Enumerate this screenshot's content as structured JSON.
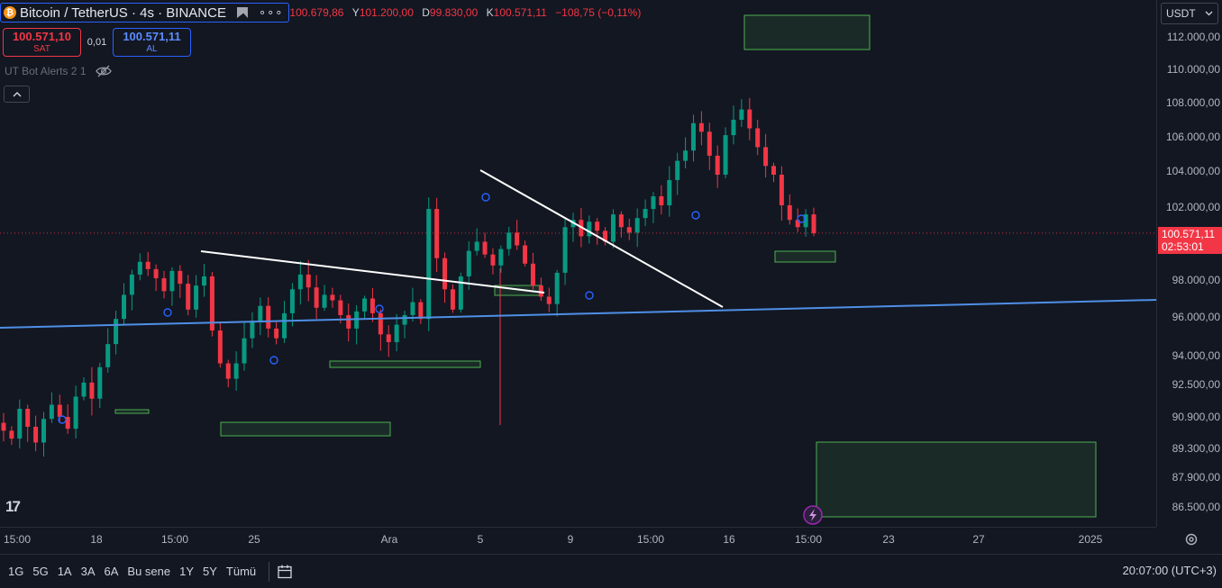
{
  "legend": {
    "symbol": "Bitcoin / TetherUS · 4s · BINANCE",
    "coin_glyph": "₿",
    "more_glyph": "∘∘∘",
    "ohlc_open_value": "100.679,86",
    "ohlc_high_key": "Y",
    "ohlc_high_value": "101.200,00",
    "ohlc_low_key": "D",
    "ohlc_low_value": "99.830,00",
    "ohlc_close_key": "K",
    "ohlc_close_value": "100.571,11",
    "ohlc_change": "−108,75 (−0,11%)"
  },
  "trade": {
    "sell_price": "100.571,10",
    "sell_label": "SAT",
    "spread": "0,01",
    "buy_price": "100.571,11",
    "buy_label": "AL"
  },
  "indicator": {
    "name": "UT Bot Alerts 2 1"
  },
  "logo": {
    "text": "17"
  },
  "price_axis": {
    "currency": "USDT",
    "ticks": [
      "112.000,00",
      "110.000,00",
      "108.000,00",
      "106.000,00",
      "104.000,00",
      "102.000,00",
      "98.000,00",
      "96.000,00",
      "94.000,00",
      "92.500,00",
      "90.900,00",
      "89.300,00",
      "87.900,00",
      "86.500,00"
    ],
    "last_price": "100.571,11",
    "countdown": "02:53:01"
  },
  "time_axis": {
    "labels": [
      "15:00",
      "18",
      "15:00",
      "25",
      "Ara",
      "5",
      "9",
      "15:00",
      "16",
      "15:00",
      "23",
      "27",
      "2025"
    ]
  },
  "bottom_bar": {
    "ranges": [
      "1G",
      "5G",
      "1A",
      "3A",
      "6A",
      "Bu sene",
      "1Y",
      "5Y",
      "Tümü"
    ],
    "clock": "20:07:00 (UTC+3)"
  },
  "colors": {
    "background": "#131722",
    "bull": "#089981",
    "bear": "#f23645",
    "trendline": "#ffffff",
    "support_line": "#4f8fe6",
    "zone_border": "#4caf50"
  },
  "chart_data": {
    "type": "candlestick",
    "close_series": [
      90200,
      89800,
      91300,
      90400,
      89600,
      90800,
      91500,
      90900,
      90300,
      91900,
      92600,
      91800,
      93400,
      94600,
      95900,
      97200,
      98300,
      99000,
      98600,
      98100,
      97400,
      98500,
      97800,
      96400,
      97700,
      98200,
      95300,
      93600,
      92800,
      93600,
      94900,
      95800,
      96600,
      95400,
      94900,
      96200,
      97500,
      98300,
      97600,
      96500,
      97200,
      96900,
      96100,
      95400,
      96300,
      97000,
      96200,
      95100,
      94700,
      95600,
      96100,
      96800,
      95900,
      101900,
      99200,
      97500,
      96400,
      98200,
      99600,
      100100,
      99400,
      98800,
      99700,
      100600,
      99900,
      98900,
      97700,
      97100,
      96700,
      98400,
      100900,
      101300,
      100400,
      101200,
      100700,
      100100,
      101600,
      100900,
      100600,
      101400,
      101900,
      102600,
      102100,
      103500,
      104600,
      105200,
      106800,
      106300,
      104900,
      103800,
      106100,
      107000,
      107600,
      106500,
      105400,
      104300,
      103800,
      102100,
      101300,
      100900,
      101600,
      100571
    ],
    "last_price": 100571.11,
    "countdown": "02:53:01",
    "y_ticks": [
      112000,
      110000,
      108000,
      106000,
      104000,
      102000,
      98000,
      96000,
      94000,
      92500,
      90900,
      89300,
      87900,
      86500
    ],
    "x_tick_labels": [
      "15:00",
      "18",
      "15:00",
      "25",
      "Ara",
      "5",
      "9",
      "15:00",
      "16",
      "15:00",
      "23",
      "27",
      "2025"
    ]
  }
}
